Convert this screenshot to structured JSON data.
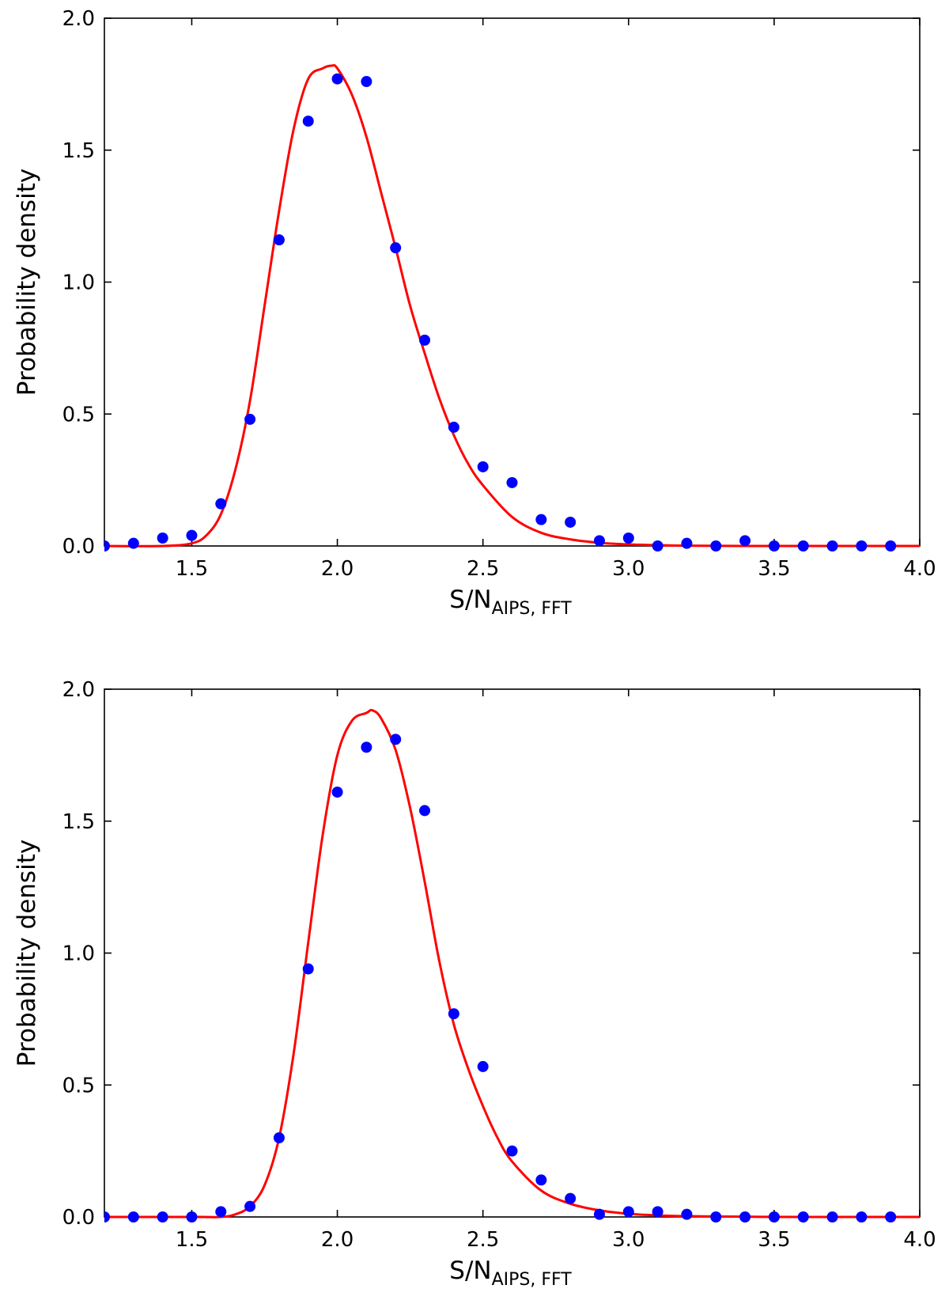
{
  "chart_data": [
    {
      "type": "scatter",
      "title": "",
      "xlabel": "S/N",
      "xlabel_subscript": "AIPS, FFT",
      "ylabel": "Probability density",
      "xlim": [
        1.2,
        4.0
      ],
      "ylim": [
        0.0,
        2.0
      ],
      "xticks": [
        "1.5",
        "2.0",
        "2.5",
        "3.0",
        "3.5",
        "4.0"
      ],
      "yticks": [
        "0.0",
        "0.5",
        "1.0",
        "1.5",
        "2.0"
      ],
      "grid": false,
      "legend": "none",
      "points_color": "#0000ff",
      "fit_color": "#ff0000",
      "series": [
        {
          "kind": "points",
          "x": [
            1.2,
            1.3,
            1.4,
            1.5,
            1.6,
            1.7,
            1.8,
            1.9,
            2.0,
            2.1,
            2.2,
            2.3,
            2.4,
            2.5,
            2.6,
            2.7,
            2.8,
            2.9,
            3.0,
            3.1,
            3.2,
            3.3,
            3.4,
            3.5,
            3.6,
            3.7,
            3.8,
            3.9
          ],
          "y": [
            0.0,
            0.01,
            0.03,
            0.04,
            0.16,
            0.48,
            1.16,
            1.61,
            1.77,
            1.76,
            1.13,
            0.78,
            0.45,
            0.3,
            0.24,
            0.1,
            0.09,
            0.02,
            0.03,
            0.0,
            0.01,
            0.0,
            0.02,
            0.0,
            0.0,
            0.0,
            0.0,
            0.0
          ]
        },
        {
          "kind": "fit",
          "x": [
            1.2,
            1.4,
            1.5,
            1.55,
            1.6,
            1.65,
            1.7,
            1.75,
            1.8,
            1.85,
            1.9,
            1.95,
            1.98,
            2.0,
            2.05,
            2.1,
            2.15,
            2.2,
            2.25,
            2.3,
            2.35,
            2.4,
            2.45,
            2.5,
            2.6,
            2.7,
            2.8,
            2.9,
            3.0,
            3.1,
            3.2,
            3.4,
            3.6,
            4.0
          ],
          "y": [
            0.0,
            0.0,
            0.01,
            0.04,
            0.12,
            0.29,
            0.55,
            0.91,
            1.27,
            1.58,
            1.77,
            1.81,
            1.82,
            1.81,
            1.71,
            1.55,
            1.34,
            1.13,
            0.91,
            0.73,
            0.56,
            0.42,
            0.31,
            0.23,
            0.11,
            0.05,
            0.025,
            0.012,
            0.006,
            0.003,
            0.001,
            0.0,
            0.0,
            0.0
          ]
        }
      ]
    },
    {
      "type": "scatter",
      "title": "",
      "xlabel": "S/N",
      "xlabel_subscript": "AIPS, FFT",
      "ylabel": "Probability density",
      "xlim": [
        1.2,
        4.0
      ],
      "ylim": [
        0.0,
        2.0
      ],
      "xticks": [
        "1.5",
        "2.0",
        "2.5",
        "3.0",
        "3.5",
        "4.0"
      ],
      "yticks": [
        "0.0",
        "0.5",
        "1.0",
        "1.5",
        "2.0"
      ],
      "grid": false,
      "legend": "none",
      "points_color": "#0000ff",
      "fit_color": "#ff0000",
      "series": [
        {
          "kind": "points",
          "x": [
            1.2,
            1.3,
            1.4,
            1.5,
            1.6,
            1.7,
            1.8,
            1.9,
            2.0,
            2.1,
            2.2,
            2.3,
            2.4,
            2.5,
            2.6,
            2.7,
            2.8,
            2.9,
            3.0,
            3.1,
            3.2,
            3.3,
            3.4,
            3.5,
            3.6,
            3.7,
            3.8,
            3.9
          ],
          "y": [
            0.0,
            0.0,
            0.0,
            0.0,
            0.02,
            0.04,
            0.3,
            0.94,
            1.61,
            1.78,
            1.81,
            1.54,
            0.77,
            0.57,
            0.25,
            0.14,
            0.07,
            0.01,
            0.02,
            0.02,
            0.01,
            0.0,
            0.0,
            0.0,
            0.0,
            0.0,
            0.0,
            0.0
          ]
        },
        {
          "kind": "fit",
          "x": [
            1.2,
            1.5,
            1.6,
            1.65,
            1.7,
            1.75,
            1.8,
            1.85,
            1.9,
            1.95,
            2.0,
            2.05,
            2.1,
            2.12,
            2.15,
            2.2,
            2.25,
            2.3,
            2.35,
            2.4,
            2.45,
            2.5,
            2.55,
            2.6,
            2.7,
            2.8,
            2.9,
            3.0,
            3.1,
            3.2,
            3.4,
            3.6,
            4.0
          ],
          "y": [
            0.0,
            0.0,
            0.0,
            0.01,
            0.04,
            0.12,
            0.3,
            0.62,
            1.04,
            1.45,
            1.75,
            1.88,
            1.91,
            1.92,
            1.89,
            1.77,
            1.55,
            1.27,
            0.97,
            0.73,
            0.56,
            0.42,
            0.3,
            0.21,
            0.1,
            0.05,
            0.025,
            0.012,
            0.006,
            0.003,
            0.001,
            0.0,
            0.0
          ]
        }
      ]
    }
  ]
}
